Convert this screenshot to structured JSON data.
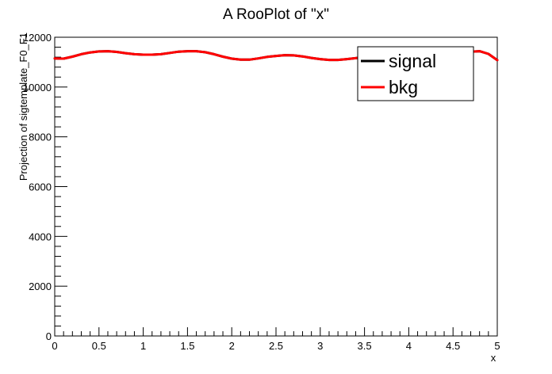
{
  "chart_data": {
    "type": "line",
    "title": "A RooPlot of \"x\"",
    "xlabel": "x",
    "ylabel": "Projection of sigtemplate_F0_F1",
    "xlim": [
      0,
      5
    ],
    "ylim": [
      0,
      12000
    ],
    "x_ticks": [
      0,
      0.5,
      1,
      1.5,
      2,
      2.5,
      3,
      3.5,
      4,
      4.5,
      5
    ],
    "x_tick_labels": [
      "0",
      "0.5",
      "1",
      "1.5",
      "2",
      "2.5",
      "3",
      "3.5",
      "4",
      "4.5",
      "5"
    ],
    "y_ticks": [
      0,
      2000,
      4000,
      6000,
      8000,
      10000,
      12000
    ],
    "y_tick_labels": [
      "0",
      "2000",
      "4000",
      "6000",
      "8000",
      "10000",
      "12000"
    ],
    "grid": false,
    "legend_position": "top-right",
    "series": [
      {
        "name": "signal",
        "color": "#000000",
        "x": [
          0,
          0.1,
          0.2,
          0.3,
          0.4,
          0.5,
          0.6,
          0.7,
          0.8,
          0.9,
          1.0,
          1.1,
          1.2,
          1.3,
          1.4,
          1.5,
          1.6,
          1.7,
          1.8,
          1.9,
          2.0,
          2.1,
          2.2,
          2.3,
          2.4,
          2.5,
          2.6,
          2.7,
          2.8,
          2.9,
          3.0,
          3.1,
          3.2,
          3.3,
          3.4,
          3.5,
          3.6,
          3.7,
          3.8,
          3.9,
          4.0,
          4.1,
          4.2,
          4.3,
          4.4,
          4.5,
          4.6,
          4.7,
          4.8,
          4.9,
          5.0
        ],
        "y": [
          11150,
          11140,
          11220,
          11320,
          11390,
          11430,
          11440,
          11410,
          11360,
          11320,
          11300,
          11300,
          11320,
          11370,
          11420,
          11440,
          11440,
          11400,
          11320,
          11220,
          11140,
          11100,
          11100,
          11150,
          11210,
          11250,
          11280,
          11270,
          11230,
          11170,
          11120,
          11090,
          11090,
          11120,
          11160,
          11200,
          11210,
          11200,
          11180,
          11170,
          11170,
          11190,
          11220,
          11260,
          11300,
          11340,
          11380,
          11420,
          11440,
          11330,
          11080
        ]
      },
      {
        "name": "bkg",
        "color": "#ff0000",
        "x": [
          0,
          0.1,
          0.2,
          0.3,
          0.4,
          0.5,
          0.6,
          0.7,
          0.8,
          0.9,
          1.0,
          1.1,
          1.2,
          1.3,
          1.4,
          1.5,
          1.6,
          1.7,
          1.8,
          1.9,
          2.0,
          2.1,
          2.2,
          2.3,
          2.4,
          2.5,
          2.6,
          2.7,
          2.8,
          2.9,
          3.0,
          3.1,
          3.2,
          3.3,
          3.4,
          3.5,
          3.6,
          3.7,
          3.8,
          3.9,
          4.0,
          4.1,
          4.2,
          4.3,
          4.4,
          4.5,
          4.6,
          4.7,
          4.8,
          4.9,
          5.0
        ],
        "y": [
          11150,
          11140,
          11220,
          11320,
          11390,
          11430,
          11440,
          11410,
          11360,
          11320,
          11300,
          11300,
          11320,
          11370,
          11420,
          11440,
          11440,
          11400,
          11320,
          11220,
          11140,
          11100,
          11100,
          11150,
          11210,
          11250,
          11280,
          11270,
          11230,
          11170,
          11120,
          11090,
          11090,
          11120,
          11160,
          11200,
          11210,
          11200,
          11180,
          11170,
          11170,
          11190,
          11220,
          11260,
          11300,
          11340,
          11380,
          11420,
          11440,
          11330,
          11080
        ]
      }
    ]
  }
}
